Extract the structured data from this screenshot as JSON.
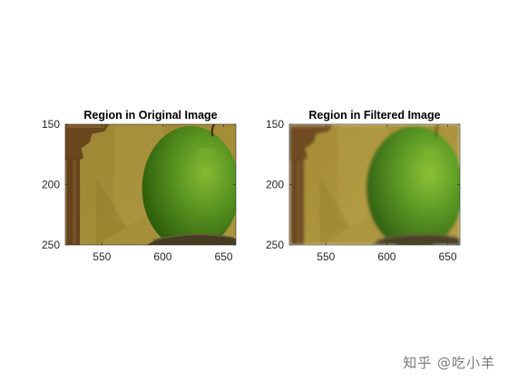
{
  "chart_data": [
    {
      "type": "image",
      "title": "Region in Original Image",
      "xticks": [
        550,
        600,
        650
      ],
      "yticks": [
        150,
        200,
        250
      ],
      "xlim": [
        520,
        660
      ],
      "ylim": [
        150,
        250
      ],
      "yreversed": true,
      "filtered": false
    },
    {
      "type": "image",
      "title": "Region in Filtered Image",
      "xticks": [
        550,
        600,
        650
      ],
      "yticks": [
        150,
        200,
        250
      ],
      "xlim": [
        520,
        660
      ],
      "ylim": [
        150,
        250
      ],
      "yreversed": true,
      "filtered": true
    }
  ],
  "colors": {
    "wall": "#a8923a",
    "wall_shadow": "#8f7a2c",
    "apple": "#4f8f22",
    "apple_highlight": "#7bb832",
    "wood": "#6e4b22",
    "axis": "#262626"
  },
  "watermark": "知乎 @吃小羊"
}
